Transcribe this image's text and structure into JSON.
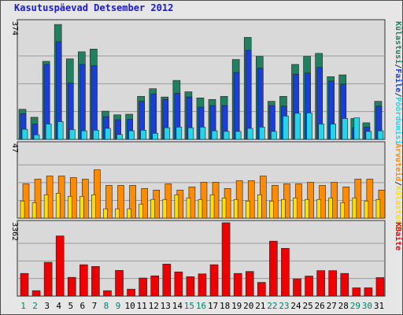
{
  "title": "Kasutuspäevad Detsember 2012",
  "colors": {
    "visits": "#208060",
    "pages": "#1a3fd8",
    "files": "#22d5e8",
    "visits_outer": "#ff8c00",
    "hosts": "#ffde00",
    "kbytes": "#ee0000",
    "weekend_day": "#00806a",
    "weekday": "#000000"
  },
  "chart_data": [
    {
      "type": "bar",
      "panel": "top",
      "ymax_label": "374",
      "ylim": [
        0,
        374
      ],
      "side_labels": [
        "Külastusi",
        "/",
        "Faile",
        "/",
        "Pöördumisi"
      ],
      "categories": [
        "1",
        "2",
        "3",
        "4",
        "5",
        "6",
        "7",
        "8",
        "9",
        "10",
        "11",
        "12",
        "13",
        "14",
        "15",
        "16",
        "17",
        "18",
        "19",
        "20",
        "21",
        "22",
        "23",
        "24",
        "25",
        "26",
        "27",
        "28",
        "29",
        "30",
        "31"
      ],
      "series": [
        {
          "name": "Külastusi",
          "values": [
            98,
            72,
            254,
            374,
            262,
            285,
            294,
            92,
            80,
            82,
            140,
            165,
            138,
            192,
            155,
            135,
            130,
            140,
            260,
            332,
            270,
            124,
            140,
            244,
            270,
            280,
            204,
            210,
            68,
            54,
            124
          ]
        },
        {
          "name": "Faile",
          "values": [
            84,
            50,
            244,
            318,
            184,
            244,
            240,
            74,
            64,
            65,
            124,
            148,
            130,
            150,
            138,
            105,
            110,
            110,
            218,
            290,
            232,
            110,
            108,
            212,
            216,
            234,
            190,
            180,
            38,
            40,
            108
          ]
        },
        {
          "name": "Pöördumisi",
          "values": [
            33,
            15,
            50,
            58,
            32,
            28,
            30,
            36,
            16,
            28,
            30,
            20,
            38,
            40,
            38,
            40,
            28,
            26,
            26,
            36,
            40,
            26,
            76,
            85,
            86,
            50,
            50,
            68,
            70,
            26,
            28
          ]
        }
      ]
    },
    {
      "type": "bar",
      "panel": "middle",
      "ymax_label": "47",
      "ylim": [
        0,
        47
      ],
      "side_labels": [
        "Arvuteid",
        "/",
        "Külastusi"
      ],
      "categories": [
        "1",
        "2",
        "3",
        "4",
        "5",
        "6",
        "7",
        "8",
        "9",
        "10",
        "11",
        "12",
        "13",
        "14",
        "15",
        "16",
        "17",
        "18",
        "19",
        "20",
        "21",
        "22",
        "23",
        "24",
        "25",
        "26",
        "27",
        "28",
        "29",
        "30",
        "31"
      ],
      "series": [
        {
          "name": "Arvuteid",
          "values": [
            22,
            25,
            27,
            27,
            26,
            25,
            31,
            21,
            21,
            21,
            19,
            18,
            22,
            18,
            20,
            23,
            23,
            19,
            24,
            24,
            27,
            21,
            22,
            22,
            23,
            21,
            23,
            20,
            25,
            25,
            18
          ]
        },
        {
          "name": "Külastusi",
          "values": [
            11,
            10,
            15,
            16,
            14,
            14,
            15,
            6,
            6,
            6,
            9,
            12,
            12,
            15,
            13,
            12,
            15,
            13,
            12,
            11,
            15,
            11,
            12,
            13,
            12,
            12,
            13,
            10,
            13,
            11,
            12
          ]
        }
      ]
    },
    {
      "type": "bar",
      "panel": "bottom",
      "ymax_label": "3362",
      "ylim": [
        0,
        3362
      ],
      "side_labels": [
        "KBaite"
      ],
      "categories": [
        "1",
        "2",
        "3",
        "4",
        "5",
        "6",
        "7",
        "8",
        "9",
        "10",
        "11",
        "12",
        "13",
        "14",
        "15",
        "16",
        "17",
        "18",
        "19",
        "20",
        "21",
        "22",
        "23",
        "24",
        "25",
        "26",
        "27",
        "28",
        "29",
        "30",
        "31"
      ],
      "series": [
        {
          "name": "KBaite",
          "values": [
            1040,
            250,
            1550,
            2760,
            860,
            1440,
            1360,
            250,
            1180,
            320,
            830,
            930,
            1470,
            1110,
            890,
            1020,
            1440,
            3362,
            1040,
            1130,
            630,
            2520,
            2190,
            790,
            920,
            1170,
            1170,
            1040,
            380,
            380,
            850
          ]
        }
      ]
    }
  ],
  "days": {
    "weekend": [
      "1",
      "2",
      "8",
      "9",
      "15",
      "16",
      "22",
      "23",
      "29",
      "30"
    ]
  }
}
